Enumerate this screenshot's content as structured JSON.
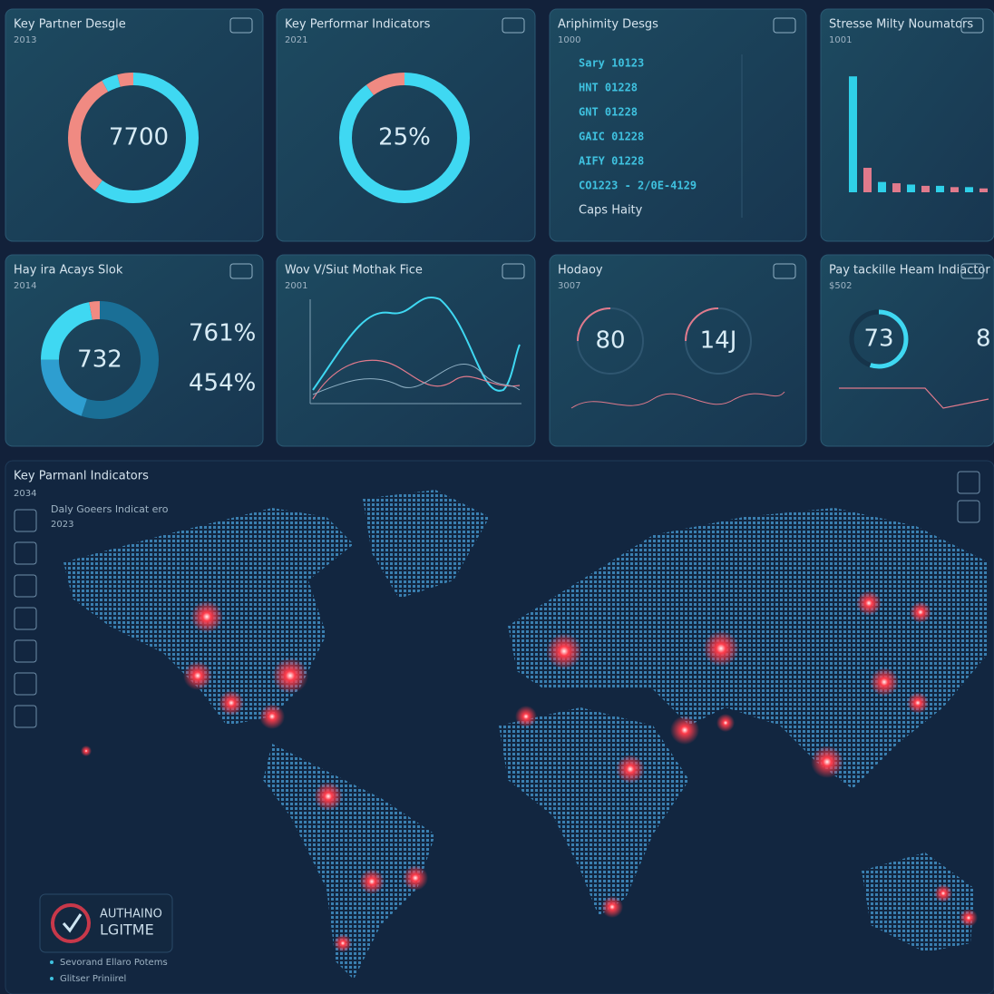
{
  "panels": [
    {
      "title": "Key Partner Desgle",
      "subtitle": "2013",
      "value": "7700"
    },
    {
      "title": "Key Performar Indicators",
      "subtitle": "2021",
      "value": "25%"
    },
    {
      "title": "Ariphimity Desgs",
      "subtitle": "1000",
      "lines": [
        "Sary 10123",
        "HNT 01228",
        "GNT 01228",
        "GAIC 01228",
        "AIFY 01228",
        "CO1223 - 2/0E-4129",
        "Caps Haity"
      ]
    },
    {
      "title": "Stresse Milty Noumators",
      "subtitle": "1001"
    },
    {
      "title": "Hay ira Acays Slok",
      "subtitle": "2014",
      "value": "732",
      "stats": [
        "761%",
        "454%"
      ]
    },
    {
      "title": "Wov V/Siut Mothak Fice",
      "subtitle": "2001"
    },
    {
      "title": "Hodaoy",
      "subtitle": "3007",
      "gauges": [
        "80",
        "14J"
      ]
    },
    {
      "title": "Pay tackille Heam Indiactor",
      "subtitle": "$502",
      "gauges": [
        "73",
        "8"
      ]
    }
  ],
  "bars": {
    "values": [
      90,
      19,
      8,
      7,
      6,
      5,
      5,
      4,
      4,
      3
    ],
    "colors": [
      "#2fd0e8",
      "#e07a8c"
    ],
    "ylim": [
      0,
      100
    ]
  },
  "map": {
    "title": "Key Parmanl Indicators",
    "subtitle": "2034",
    "inset_title": "Daly Goeers Indicat ero",
    "inset_subtitle": "2023",
    "logo": [
      "AUTHAINO",
      "LGITME"
    ],
    "legend": [
      "Sevorand Ellaro Potems",
      "Glitser Priniirel"
    ]
  }
}
